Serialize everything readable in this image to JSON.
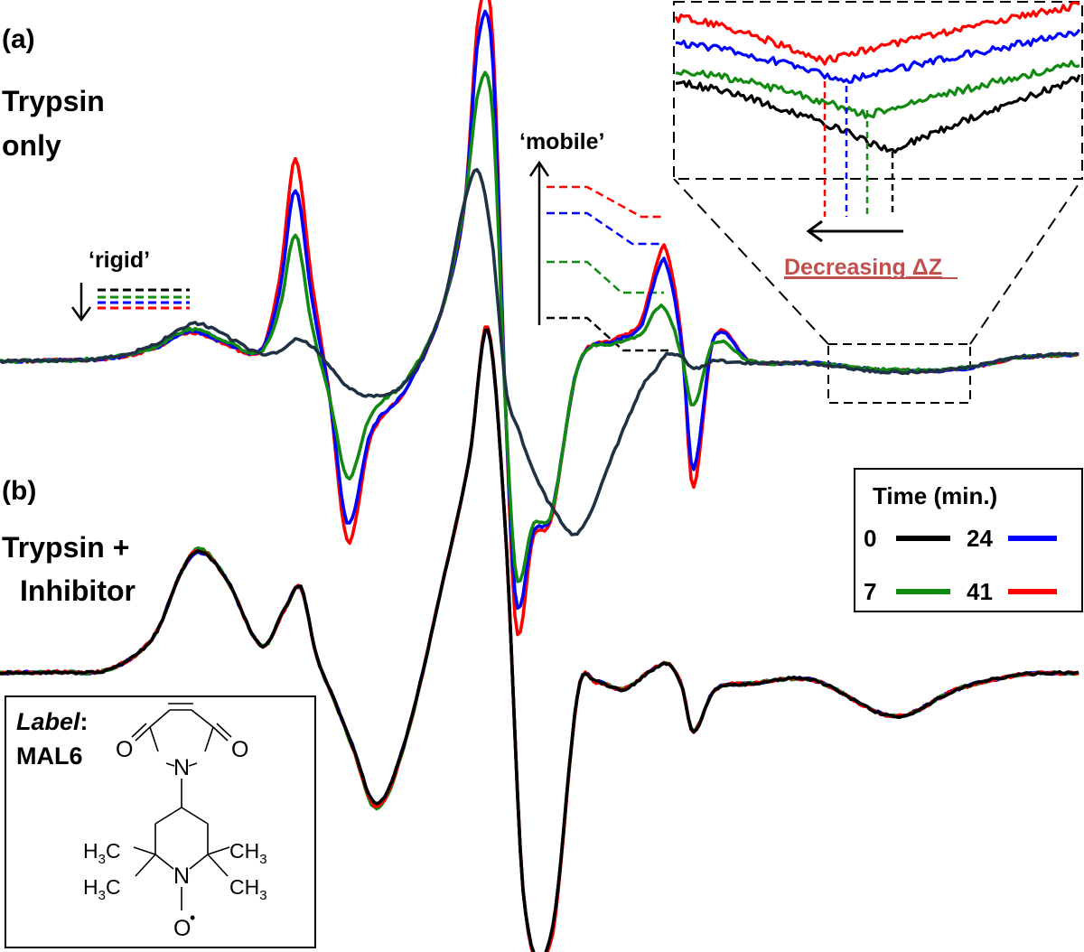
{
  "panel_a": {
    "letter": "(a)",
    "title_line1": "Trypsin",
    "title_line2": "only"
  },
  "panel_b": {
    "letter": "(b)",
    "title_line1": "Trypsin +",
    "title_line2": "Inhibitor"
  },
  "annotations": {
    "rigid": "‘rigid’",
    "mobile": "‘mobile’",
    "decreasing_dz": "Decreasing ΔZ"
  },
  "legend": {
    "title": "Time (min.)",
    "entries": [
      {
        "label": "0",
        "color": "#000000"
      },
      {
        "label": "24",
        "color": "#0000ff"
      },
      {
        "label": "7",
        "color": "#008000"
      },
      {
        "label": "41",
        "color": "#ff0000"
      }
    ]
  },
  "label_box": {
    "label_word": "Label",
    "colon": ":",
    "name": "MAL6",
    "atoms": {
      "O_left": "O",
      "O_right": "O",
      "N_top": "N",
      "N_bottom": "N",
      "O_bottom": "O",
      "radical": "•"
    },
    "groups": {
      "left_upper": [
        "H",
        "3",
        "C"
      ],
      "left_lower": [
        "H",
        "3",
        "C"
      ],
      "right_upper": [
        "CH",
        "3"
      ],
      "right_lower": [
        "CH",
        "3"
      ]
    }
  },
  "colors": {
    "t0": "#000000",
    "t0_panel_a": "#1f3144",
    "t7": "#118a11",
    "t24": "#0000ff",
    "t41": "#ff0000",
    "red_label": "#c0504d"
  },
  "chart_data": [
    {
      "type": "line",
      "panel": "(a)",
      "title": "Trypsin only",
      "xlabel": "",
      "ylabel": "",
      "grid": false,
      "legend_position": "right",
      "x": [
        0,
        60,
        120,
        170,
        200,
        220,
        250,
        290,
        310,
        327,
        345,
        365,
        385,
        410,
        450,
        490,
        515,
        530,
        545,
        560,
        572,
        590,
        610,
        640,
        680,
        710,
        725,
        737,
        755,
        767,
        790,
        830,
        900,
        980,
        1060,
        1130,
        1195
      ],
      "series": [
        {
          "name": "0",
          "values": [
            0,
            1,
            4,
            18,
            36,
            42,
            28,
            8,
            12,
            24,
            17,
            -6,
            -28,
            -38,
            -22,
            60,
            180,
            210,
            130,
            -30,
            -70,
            -120,
            -160,
            -190,
            -100,
            -30,
            -10,
            7,
            5,
            -8,
            0,
            -2,
            -3,
            -12,
            -8,
            5,
            8
          ]
        },
        {
          "name": "7",
          "values": [
            0,
            1,
            4,
            15,
            32,
            35,
            22,
            12,
            60,
            140,
            40,
            -40,
            -130,
            -60,
            -20,
            60,
            180,
            300,
            280,
            -60,
            -240,
            -180,
            -170,
            -5,
            20,
            30,
            55,
            58,
            5,
            -50,
            20,
            0,
            -2,
            -9,
            -8,
            4,
            8
          ]
        },
        {
          "name": "24",
          "values": [
            0,
            1,
            3,
            14,
            30,
            32,
            20,
            14,
            80,
            190,
            70,
            -40,
            -180,
            -80,
            -30,
            60,
            180,
            360,
            340,
            -60,
            -270,
            -190,
            -170,
            -5,
            22,
            40,
            90,
            110,
            15,
            -120,
            25,
            0,
            -2,
            -10,
            -9,
            4,
            8
          ]
        },
        {
          "name": "41",
          "values": [
            0,
            1,
            3,
            14,
            30,
            31,
            19,
            14,
            95,
            225,
            90,
            -40,
            -200,
            -85,
            -30,
            60,
            180,
            385,
            365,
            -60,
            -300,
            -195,
            -175,
            -5,
            24,
            45,
            100,
            125,
            20,
            -140,
            25,
            0,
            -2,
            -10,
            -9,
            4,
            8
          ]
        }
      ]
    },
    {
      "type": "line",
      "panel": "(b)",
      "title": "Trypsin + Inhibitor",
      "xlabel": "",
      "ylabel": "",
      "grid": false,
      "x": [
        0,
        60,
        120,
        170,
        200,
        220,
        250,
        290,
        315,
        333,
        350,
        370,
        390,
        417,
        450,
        490,
        520,
        540,
        560,
        580,
        610,
        640,
        660,
        690,
        720,
        740,
        755,
        767,
        790,
        830,
        900,
        990,
        1060,
        1130,
        1195
      ],
      "series": [
        {
          "name": "0",
          "values": [
            0,
            1,
            4,
            40,
            110,
            135,
            105,
            30,
            70,
            95,
            20,
            -30,
            -80,
            -145,
            -70,
            100,
            240,
            380,
            150,
            -250,
            -290,
            -20,
            -10,
            -18,
            2,
            10,
            -15,
            -65,
            -20,
            -12,
            -8,
            -48,
            -18,
            -2,
            0
          ]
        },
        {
          "name": "7",
          "values": [
            0,
            1,
            4,
            40,
            110,
            138,
            105,
            30,
            70,
            93,
            20,
            -30,
            -82,
            -150,
            -72,
            100,
            240,
            382,
            150,
            -252,
            -295,
            -20,
            -10,
            -18,
            2,
            10,
            -15,
            -65,
            -20,
            -12,
            -8,
            -48,
            -18,
            -2,
            0
          ]
        },
        {
          "name": "24",
          "values": [
            0,
            1,
            4,
            40,
            110,
            134,
            105,
            30,
            70,
            94,
            20,
            -30,
            -80,
            -146,
            -70,
            100,
            240,
            380,
            150,
            -251,
            -292,
            -20,
            -10,
            -18,
            2,
            10,
            -15,
            -65,
            -20,
            -12,
            -8,
            -48,
            -18,
            -2,
            0
          ]
        },
        {
          "name": "41",
          "values": [
            0,
            1,
            4,
            40,
            110,
            136,
            105,
            30,
            70,
            95,
            20,
            -30,
            -81,
            -148,
            -71,
            100,
            240,
            384,
            150,
            -250,
            -297,
            -20,
            -10,
            -18,
            2,
            10,
            -15,
            -65,
            -20,
            -12,
            -8,
            -48,
            -18,
            -2,
            0
          ]
        }
      ]
    }
  ]
}
